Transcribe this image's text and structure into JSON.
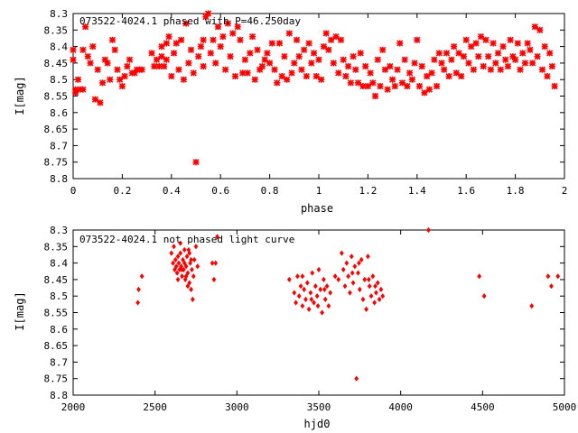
{
  "chart_data": [
    {
      "type": "scatter",
      "title": "073522-4024.1 phased with P=46.250day",
      "xlabel": "phase",
      "ylabel": "I[mag]",
      "xlim": [
        0,
        2
      ],
      "ylim": [
        8.3,
        8.8
      ],
      "y_inverted": true,
      "grid": false,
      "marker_color": "#ff0000",
      "marker": "cross",
      "x_ticks": [
        "0",
        "0.2",
        "0.4",
        "0.6",
        "0.8",
        "1",
        "1.2",
        "1.4",
        "1.6",
        "1.8",
        "2"
      ],
      "y_ticks": [
        "8.3",
        "8.35",
        "8.4",
        "8.45",
        "8.5",
        "8.55",
        "8.6",
        "8.65",
        "8.7",
        "8.75",
        "8.8"
      ],
      "points": [
        [
          0.0,
          8.41
        ],
        [
          0.0,
          8.44
        ],
        [
          0.01,
          8.53
        ],
        [
          0.01,
          8.54
        ],
        [
          0.02,
          8.5
        ],
        [
          0.03,
          8.53
        ],
        [
          0.04,
          8.53
        ],
        [
          0.04,
          8.41
        ],
        [
          0.05,
          8.34
        ],
        [
          0.06,
          8.43
        ],
        [
          0.07,
          8.45
        ],
        [
          0.08,
          8.4
        ],
        [
          0.09,
          8.56
        ],
        [
          0.1,
          8.47
        ],
        [
          0.11,
          8.57
        ],
        [
          0.12,
          8.51
        ],
        [
          0.13,
          8.44
        ],
        [
          0.14,
          8.45
        ],
        [
          0.15,
          8.5
        ],
        [
          0.16,
          8.38
        ],
        [
          0.17,
          8.41
        ],
        [
          0.18,
          8.47
        ],
        [
          0.19,
          8.5
        ],
        [
          0.2,
          8.52
        ],
        [
          0.21,
          8.49
        ],
        [
          0.22,
          8.46
        ],
        [
          0.23,
          8.44
        ],
        [
          0.24,
          8.48
        ],
        [
          0.25,
          8.48
        ],
        [
          0.26,
          8.47
        ],
        [
          0.27,
          8.47
        ],
        [
          0.28,
          8.47
        ],
        [
          0.32,
          8.42
        ],
        [
          0.33,
          8.46
        ],
        [
          0.34,
          8.44
        ],
        [
          0.35,
          8.46
        ],
        [
          0.36,
          8.4
        ],
        [
          0.36,
          8.43
        ],
        [
          0.37,
          8.46
        ],
        [
          0.38,
          8.39
        ],
        [
          0.38,
          8.44
        ],
        [
          0.39,
          8.37
        ],
        [
          0.4,
          8.49
        ],
        [
          0.41,
          8.42
        ],
        [
          0.42,
          8.39
        ],
        [
          0.43,
          8.47
        ],
        [
          0.44,
          8.38
        ],
        [
          0.45,
          8.5
        ],
        [
          0.46,
          8.33
        ],
        [
          0.47,
          8.45
        ],
        [
          0.48,
          8.41
        ],
        [
          0.49,
          8.48
        ],
        [
          0.5,
          8.75
        ],
        [
          0.51,
          8.43
        ],
        [
          0.52,
          8.4
        ],
        [
          0.53,
          8.38
        ],
        [
          0.53,
          8.46
        ],
        [
          0.54,
          8.31
        ],
        [
          0.55,
          8.3
        ],
        [
          0.56,
          8.42
        ],
        [
          0.57,
          8.38
        ],
        [
          0.58,
          8.45
        ],
        [
          0.59,
          8.34
        ],
        [
          0.6,
          8.4
        ],
        [
          0.61,
          8.37
        ],
        [
          0.62,
          8.47
        ],
        [
          0.63,
          8.33
        ],
        [
          0.64,
          8.43
        ],
        [
          0.65,
          8.36
        ],
        [
          0.66,
          8.49
        ],
        [
          0.67,
          8.34
        ],
        [
          0.68,
          8.38
        ],
        [
          0.69,
          8.48
        ],
        [
          0.7,
          8.44
        ],
        [
          0.71,
          8.48
        ],
        [
          0.72,
          8.42
        ],
        [
          0.73,
          8.37
        ],
        [
          0.74,
          8.5
        ],
        [
          0.75,
          8.41
        ],
        [
          0.76,
          8.47
        ],
        [
          0.77,
          8.46
        ],
        [
          0.78,
          8.44
        ],
        [
          0.79,
          8.42
        ],
        [
          0.8,
          8.45
        ],
        [
          0.81,
          8.39
        ],
        [
          0.82,
          8.47
        ],
        [
          0.83,
          8.51
        ],
        [
          0.84,
          8.39
        ],
        [
          0.85,
          8.49
        ],
        [
          0.86,
          8.43
        ],
        [
          0.87,
          8.5
        ],
        [
          0.88,
          8.36
        ],
        [
          0.89,
          8.48
        ],
        [
          0.9,
          8.45
        ],
        [
          0.91,
          8.38
        ],
        [
          0.92,
          8.43
        ],
        [
          0.93,
          8.47
        ],
        [
          0.94,
          8.41
        ],
        [
          0.95,
          8.49
        ],
        [
          0.96,
          8.39
        ],
        [
          0.97,
          8.45
        ],
        [
          0.98,
          8.42
        ],
        [
          0.99,
          8.49
        ],
        [
          1.0,
          8.44
        ],
        [
          1.01,
          8.5
        ],
        [
          1.02,
          8.4
        ],
        [
          1.03,
          8.36
        ],
        [
          1.04,
          8.41
        ],
        [
          1.05,
          8.38
        ],
        [
          1.06,
          8.45
        ],
        [
          1.07,
          8.37
        ],
        [
          1.08,
          8.48
        ],
        [
          1.09,
          8.38
        ],
        [
          1.1,
          8.44
        ],
        [
          1.11,
          8.49
        ],
        [
          1.12,
          8.46
        ],
        [
          1.13,
          8.51
        ],
        [
          1.14,
          8.43
        ],
        [
          1.15,
          8.47
        ],
        [
          1.16,
          8.51
        ],
        [
          1.17,
          8.42
        ],
        [
          1.18,
          8.52
        ],
        [
          1.19,
          8.46
        ],
        [
          1.2,
          8.52
        ],
        [
          1.21,
          8.48
        ],
        [
          1.22,
          8.51
        ],
        [
          1.23,
          8.55
        ],
        [
          1.24,
          8.44
        ],
        [
          1.25,
          8.52
        ],
        [
          1.26,
          8.41
        ],
        [
          1.27,
          8.47
        ],
        [
          1.28,
          8.53
        ],
        [
          1.29,
          8.46
        ],
        [
          1.3,
          8.5
        ],
        [
          1.31,
          8.52
        ],
        [
          1.32,
          8.47
        ],
        [
          1.33,
          8.39
        ],
        [
          1.34,
          8.51
        ],
        [
          1.35,
          8.44
        ],
        [
          1.36,
          8.52
        ],
        [
          1.37,
          8.48
        ],
        [
          1.38,
          8.5
        ],
        [
          1.39,
          8.45
        ],
        [
          1.4,
          8.38
        ],
        [
          1.41,
          8.52
        ],
        [
          1.42,
          8.46
        ],
        [
          1.43,
          8.54
        ],
        [
          1.44,
          8.49
        ],
        [
          1.45,
          8.53
        ],
        [
          1.46,
          8.48
        ],
        [
          1.47,
          8.44
        ],
        [
          1.48,
          8.52
        ],
        [
          1.49,
          8.42
        ],
        [
          1.5,
          8.45
        ],
        [
          1.51,
          8.47
        ],
        [
          1.52,
          8.42
        ],
        [
          1.53,
          8.49
        ],
        [
          1.54,
          8.44
        ],
        [
          1.55,
          8.4
        ],
        [
          1.56,
          8.48
        ],
        [
          1.57,
          8.42
        ],
        [
          1.58,
          8.49
        ],
        [
          1.59,
          8.43
        ],
        [
          1.6,
          8.38
        ],
        [
          1.61,
          8.45
        ],
        [
          1.62,
          8.4
        ],
        [
          1.63,
          8.47
        ],
        [
          1.64,
          8.39
        ],
        [
          1.65,
          8.43
        ],
        [
          1.66,
          8.37
        ],
        [
          1.67,
          8.46
        ],
        [
          1.68,
          8.38
        ],
        [
          1.69,
          8.43
        ],
        [
          1.7,
          8.47
        ],
        [
          1.71,
          8.39
        ],
        [
          1.72,
          8.45
        ],
        [
          1.73,
          8.42
        ],
        [
          1.74,
          8.47
        ],
        [
          1.75,
          8.4
        ],
        [
          1.76,
          8.44
        ],
        [
          1.77,
          8.46
        ],
        [
          1.78,
          8.38
        ],
        [
          1.79,
          8.43
        ],
        [
          1.8,
          8.44
        ],
        [
          1.81,
          8.39
        ],
        [
          1.82,
          8.47
        ],
        [
          1.83,
          8.42
        ],
        [
          1.84,
          8.45
        ],
        [
          1.85,
          8.39
        ],
        [
          1.86,
          8.41
        ],
        [
          1.87,
          8.45
        ],
        [
          1.88,
          8.34
        ],
        [
          1.89,
          8.43
        ],
        [
          1.9,
          8.35
        ],
        [
          1.91,
          8.47
        ],
        [
          1.92,
          8.4
        ],
        [
          1.93,
          8.49
        ],
        [
          1.94,
          8.42
        ],
        [
          1.95,
          8.46
        ],
        [
          1.96,
          8.52
        ]
      ]
    },
    {
      "type": "scatter",
      "title": "073522-4024.1 not phased light curve",
      "xlabel": "hjd0",
      "ylabel": "I[mag]",
      "xlim": [
        2000,
        5000
      ],
      "ylim": [
        8.3,
        8.8
      ],
      "y_inverted": true,
      "grid": false,
      "marker_color": "#ff0000",
      "marker": "diamond",
      "x_ticks": [
        "2000",
        "2500",
        "3000",
        "3500",
        "4000",
        "4500",
        "5000"
      ],
      "y_ticks": [
        "8.3",
        "8.35",
        "8.4",
        "8.45",
        "8.5",
        "8.55",
        "8.6",
        "8.65",
        "8.7",
        "8.75",
        "8.8"
      ],
      "points": [
        [
          2395,
          8.52
        ],
        [
          2400,
          8.48
        ],
        [
          2420,
          8.44
        ],
        [
          2600,
          8.37
        ],
        [
          2610,
          8.4
        ],
        [
          2615,
          8.35
        ],
        [
          2620,
          8.42
        ],
        [
          2625,
          8.39
        ],
        [
          2630,
          8.41
        ],
        [
          2635,
          8.43
        ],
        [
          2640,
          8.38
        ],
        [
          2645,
          8.4
        ],
        [
          2650,
          8.42
        ],
        [
          2655,
          8.37
        ],
        [
          2660,
          8.41
        ],
        [
          2665,
          8.44
        ],
        [
          2670,
          8.39
        ],
        [
          2675,
          8.42
        ],
        [
          2680,
          8.4
        ],
        [
          2685,
          8.45
        ],
        [
          2690,
          8.41
        ],
        [
          2695,
          8.38
        ],
        [
          2700,
          8.43
        ],
        [
          2705,
          8.36
        ],
        [
          2710,
          8.46
        ],
        [
          2715,
          8.4
        ],
        [
          2720,
          8.48
        ],
        [
          2725,
          8.42
        ],
        [
          2730,
          8.51
        ],
        [
          2735,
          8.44
        ],
        [
          2740,
          8.39
        ],
        [
          2750,
          8.35
        ],
        [
          2760,
          8.41
        ],
        [
          2640,
          8.45
        ],
        [
          2655,
          8.34
        ],
        [
          2700,
          8.47
        ],
        [
          2680,
          8.36
        ],
        [
          2720,
          8.39
        ],
        [
          2665,
          8.42
        ],
        [
          2690,
          8.44
        ],
        [
          2710,
          8.37
        ],
        [
          2850,
          8.4
        ],
        [
          2860,
          8.45
        ],
        [
          2870,
          8.4
        ],
        [
          2880,
          8.32
        ],
        [
          3320,
          8.45
        ],
        [
          3350,
          8.49
        ],
        [
          3360,
          8.52
        ],
        [
          3370,
          8.44
        ],
        [
          3380,
          8.5
        ],
        [
          3390,
          8.47
        ],
        [
          3400,
          8.53
        ],
        [
          3410,
          8.48
        ],
        [
          3420,
          8.51
        ],
        [
          3430,
          8.46
        ],
        [
          3440,
          8.54
        ],
        [
          3450,
          8.49
        ],
        [
          3460,
          8.43
        ],
        [
          3470,
          8.52
        ],
        [
          3480,
          8.47
        ],
        [
          3490,
          8.5
        ],
        [
          3500,
          8.42
        ],
        [
          3510,
          8.48
        ],
        [
          3520,
          8.55
        ],
        [
          3530,
          8.45
        ],
        [
          3540,
          8.51
        ],
        [
          3550,
          8.47
        ],
        [
          3560,
          8.53
        ],
        [
          3570,
          8.49
        ],
        [
          3600,
          8.44
        ],
        [
          3620,
          8.45
        ],
        [
          3640,
          8.37
        ],
        [
          3650,
          8.42
        ],
        [
          3660,
          8.47
        ],
        [
          3670,
          8.4
        ],
        [
          3680,
          8.44
        ],
        [
          3690,
          8.49
        ],
        [
          3700,
          8.38
        ],
        [
          3710,
          8.46
        ],
        [
          3720,
          8.41
        ],
        [
          3730,
          8.75
        ],
        [
          3740,
          8.43
        ],
        [
          3750,
          8.48
        ],
        [
          3760,
          8.39
        ],
        [
          3770,
          8.51
        ],
        [
          3780,
          8.45
        ],
        [
          3790,
          8.54
        ],
        [
          3800,
          8.38
        ],
        [
          3810,
          8.47
        ],
        [
          3820,
          8.5
        ],
        [
          3830,
          8.44
        ],
        [
          3840,
          8.52
        ],
        [
          3850,
          8.49
        ],
        [
          3860,
          8.46
        ],
        [
          3870,
          8.51
        ],
        [
          3880,
          8.48
        ],
        [
          3890,
          8.5
        ],
        [
          3400,
          8.44
        ],
        [
          3455,
          8.51
        ],
        [
          3495,
          8.53
        ],
        [
          3535,
          8.48
        ],
        [
          3705,
          8.43
        ],
        [
          3745,
          8.4
        ],
        [
          3805,
          8.45
        ],
        [
          3845,
          8.47
        ],
        [
          4170,
          8.3
        ],
        [
          4480,
          8.44
        ],
        [
          4510,
          8.5
        ],
        [
          4800,
          8.53
        ],
        [
          4900,
          8.44
        ],
        [
          4920,
          8.47
        ],
        [
          4960,
          8.44
        ]
      ]
    }
  ]
}
